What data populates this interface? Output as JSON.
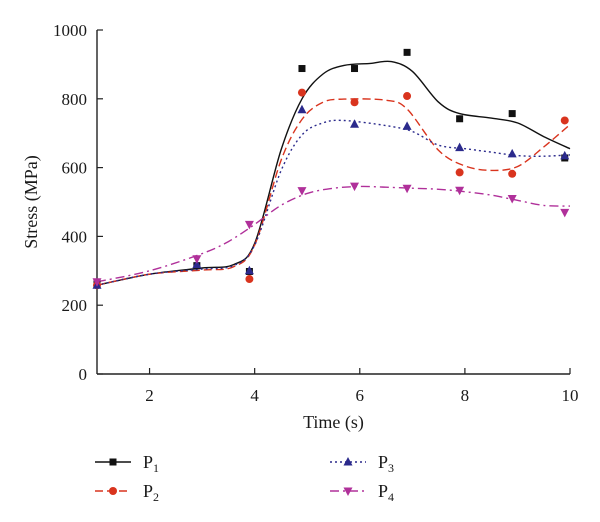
{
  "chart_data": {
    "type": "scatter",
    "xlabel": "Time (s)",
    "ylabel": "Stress (MPa)",
    "xlim": [
      1,
      10
    ],
    "ylim": [
      0,
      1000
    ],
    "xticks": [
      2,
      4,
      6,
      8,
      10
    ],
    "yticks": [
      0,
      200,
      400,
      600,
      800,
      1000
    ],
    "grid": false,
    "legend_position": "bottom",
    "series": [
      {
        "name_main": "P",
        "name_sub": "1",
        "marker": "square",
        "line_style": "solid",
        "color": "#111111",
        "points": [
          [
            1,
            262
          ],
          [
            2.9,
            315
          ],
          [
            3.9,
            298
          ],
          [
            4.9,
            888
          ],
          [
            5.9,
            888
          ],
          [
            6.9,
            935
          ],
          [
            7.9,
            742
          ],
          [
            8.9,
            757
          ],
          [
            9.9,
            628
          ]
        ],
        "fit": [
          [
            1,
            258
          ],
          [
            2,
            290
          ],
          [
            3,
            308
          ],
          [
            3.6,
            318
          ],
          [
            4,
            380
          ],
          [
            4.5,
            650
          ],
          [
            4.9,
            800
          ],
          [
            5.3,
            872
          ],
          [
            5.7,
            897
          ],
          [
            6.2,
            903
          ],
          [
            6.6,
            908
          ],
          [
            7,
            880
          ],
          [
            7.5,
            790
          ],
          [
            7.9,
            757
          ],
          [
            8.5,
            744
          ],
          [
            9,
            730
          ],
          [
            9.5,
            690
          ],
          [
            10,
            655
          ]
        ]
      },
      {
        "name_main": "P",
        "name_sub": "2",
        "marker": "circle",
        "line_style": "dash",
        "color": "#d9341e",
        "points": [
          [
            1,
            258
          ],
          [
            3.9,
            276
          ],
          [
            4.9,
            818
          ],
          [
            5.9,
            790
          ],
          [
            6.9,
            808
          ],
          [
            7.9,
            586
          ],
          [
            8.9,
            582
          ],
          [
            9.9,
            737
          ]
        ],
        "fit": [
          [
            1,
            258
          ],
          [
            2,
            290
          ],
          [
            3,
            302
          ],
          [
            3.6,
            312
          ],
          [
            4,
            375
          ],
          [
            4.5,
            620
          ],
          [
            4.9,
            740
          ],
          [
            5.3,
            790
          ],
          [
            5.7,
            799
          ],
          [
            6.5,
            796
          ],
          [
            6.9,
            770
          ],
          [
            7.5,
            650
          ],
          [
            8,
            605
          ],
          [
            8.5,
            592
          ],
          [
            9,
            603
          ],
          [
            9.5,
            660
          ],
          [
            10,
            725
          ]
        ]
      },
      {
        "name_main": "P",
        "name_sub": "3",
        "marker": "triangle-up",
        "line_style": "dot",
        "color": "#2b2a8c",
        "points": [
          [
            1,
            258
          ],
          [
            2.9,
            318
          ],
          [
            3.9,
            300
          ],
          [
            4.9,
            768
          ],
          [
            5.9,
            726
          ],
          [
            6.9,
            720
          ],
          [
            7.9,
            658
          ],
          [
            8.9,
            640
          ],
          [
            9.9,
            634
          ]
        ],
        "fit": [
          [
            1,
            258
          ],
          [
            2,
            290
          ],
          [
            3,
            305
          ],
          [
            3.6,
            315
          ],
          [
            4,
            375
          ],
          [
            4.5,
            590
          ],
          [
            4.9,
            695
          ],
          [
            5.3,
            730
          ],
          [
            5.7,
            737
          ],
          [
            6.5,
            722
          ],
          [
            7,
            705
          ],
          [
            7.5,
            665
          ],
          [
            8,
            655
          ],
          [
            8.5,
            645
          ],
          [
            9,
            635
          ],
          [
            9.5,
            633
          ],
          [
            10,
            637
          ]
        ]
      },
      {
        "name_main": "P",
        "name_sub": "4",
        "marker": "triangle-down",
        "line_style": "dashdot",
        "color": "#b0309a",
        "points": [
          [
            1,
            268
          ],
          [
            2.9,
            335
          ],
          [
            3.9,
            435
          ],
          [
            4.9,
            533
          ],
          [
            5.9,
            546
          ],
          [
            6.9,
            540
          ],
          [
            7.9,
            534
          ],
          [
            8.9,
            510
          ],
          [
            9.9,
            470
          ]
        ],
        "fit": [
          [
            1,
            268
          ],
          [
            2,
            300
          ],
          [
            3,
            350
          ],
          [
            3.5,
            385
          ],
          [
            4,
            435
          ],
          [
            4.5,
            490
          ],
          [
            5,
            525
          ],
          [
            5.5,
            540
          ],
          [
            6,
            545
          ],
          [
            6.5,
            543
          ],
          [
            7,
            540
          ],
          [
            7.5,
            537
          ],
          [
            8,
            530
          ],
          [
            8.5,
            520
          ],
          [
            9,
            505
          ],
          [
            9.5,
            490
          ],
          [
            10,
            488
          ]
        ]
      }
    ]
  }
}
